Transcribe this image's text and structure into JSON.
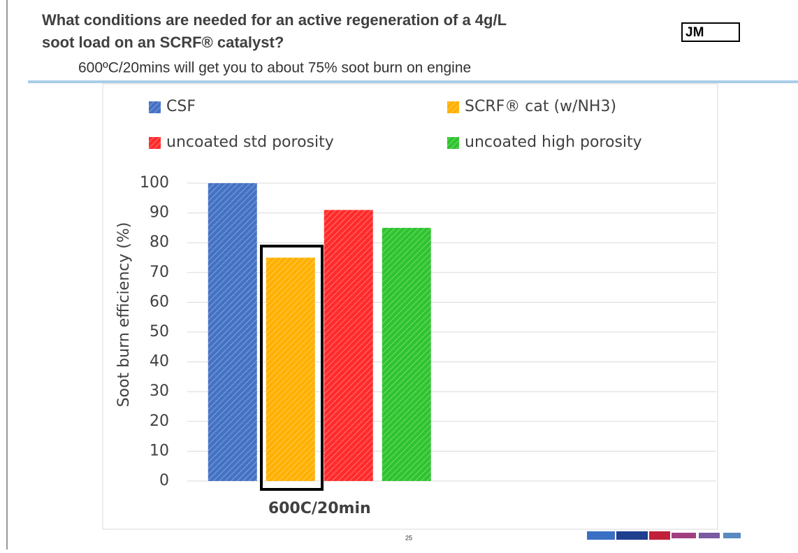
{
  "slide": {
    "title_line1": "What conditions are needed for an active regeneration of a 4g/L",
    "title_line2": "soot load on an SCRF® catalyst?",
    "subtitle": "600ºC/20mins will get you to about 75% soot burn on engine",
    "logo": "JM",
    "page_number": "25"
  },
  "chart_data": {
    "type": "bar",
    "y_label": "Soot burn efficiency (%)",
    "categories": [
      "600C/20min",
      null
    ],
    "series": [
      {
        "name": "CSF",
        "color": "#4472c4",
        "values": [
          100,
          null
        ]
      },
      {
        "name": "SCRF® cat (w/NH3)",
        "color": "#ffb000",
        "values": [
          75,
          null
        ]
      },
      {
        "name": "uncoated std porosity",
        "color": "#ff2b2b",
        "values": [
          91,
          null
        ]
      },
      {
        "name": "uncoated high porosity",
        "color": "#2fc42f",
        "values": [
          85,
          null
        ]
      }
    ],
    "ylim": [
      0,
      100
    ],
    "yticks": [
      0,
      10,
      20,
      30,
      40,
      50,
      60,
      70,
      80,
      90,
      100
    ],
    "grid": true,
    "legend": "top"
  }
}
